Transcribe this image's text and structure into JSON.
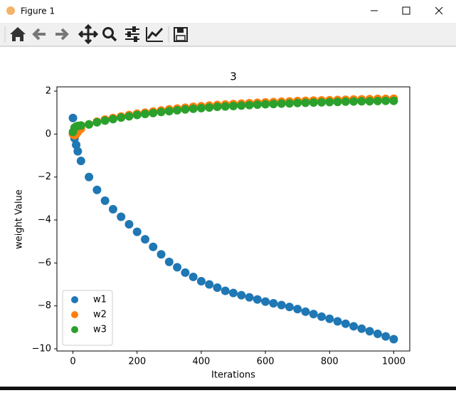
{
  "window": {
    "title": "Figure 1"
  },
  "chart_data": {
    "type": "scatter",
    "title": "3",
    "x_label": "Iterations",
    "y_label": "weight Value",
    "x": [
      0,
      5,
      10,
      15,
      25,
      50,
      75,
      100,
      125,
      150,
      175,
      200,
      225,
      250,
      275,
      300,
      325,
      350,
      375,
      400,
      425,
      450,
      475,
      500,
      525,
      550,
      575,
      600,
      625,
      650,
      675,
      700,
      725,
      750,
      775,
      800,
      825,
      850,
      875,
      900,
      925,
      950,
      975,
      1000
    ],
    "series": [
      {
        "name": "w1",
        "color": "#1f77b4",
        "values": [
          0.75,
          -0.2,
          -0.5,
          -0.8,
          -1.25,
          -2.0,
          -2.6,
          -3.1,
          -3.5,
          -3.85,
          -4.2,
          -4.55,
          -4.9,
          -5.25,
          -5.6,
          -5.95,
          -6.2,
          -6.45,
          -6.65,
          -6.85,
          -7.0,
          -7.15,
          -7.3,
          -7.4,
          -7.5,
          -7.6,
          -7.7,
          -7.8,
          -7.88,
          -7.96,
          -8.05,
          -8.15,
          -8.27,
          -8.38,
          -8.5,
          -8.6,
          -8.72,
          -8.83,
          -8.95,
          -9.06,
          -9.18,
          -9.3,
          -9.42,
          -9.55
        ]
      },
      {
        "name": "w2",
        "color": "#ff7f0e",
        "values": [
          0,
          -0.05,
          0,
          0.1,
          0.25,
          0.45,
          0.58,
          0.68,
          0.75,
          0.82,
          0.89,
          0.95,
          1.0,
          1.05,
          1.1,
          1.15,
          1.19,
          1.23,
          1.27,
          1.3,
          1.33,
          1.36,
          1.38,
          1.4,
          1.42,
          1.44,
          1.46,
          1.48,
          1.49,
          1.51,
          1.52,
          1.54,
          1.55,
          1.56,
          1.57,
          1.58,
          1.59,
          1.6,
          1.61,
          1.62,
          1.63,
          1.64,
          1.64,
          1.65
        ]
      },
      {
        "name": "w3",
        "color": "#2ca02c",
        "values": [
          0.1,
          0.3,
          0.35,
          0.38,
          0.4,
          0.45,
          0.55,
          0.63,
          0.7,
          0.77,
          0.83,
          0.89,
          0.94,
          0.98,
          1.03,
          1.07,
          1.11,
          1.15,
          1.18,
          1.21,
          1.24,
          1.27,
          1.29,
          1.31,
          1.33,
          1.35,
          1.37,
          1.39,
          1.4,
          1.42,
          1.43,
          1.45,
          1.46,
          1.47,
          1.48,
          1.49,
          1.5,
          1.51,
          1.52,
          1.53,
          1.53,
          1.54,
          1.55,
          1.55
        ]
      }
    ],
    "xlim": [
      -50,
      1050
    ],
    "ylim": [
      -10.1,
      2.2
    ],
    "xticks": [
      0,
      200,
      400,
      600,
      800,
      1000
    ],
    "yticks": [
      {
        "value": -10,
        "label": "−10"
      },
      {
        "value": -8,
        "label": "−8"
      },
      {
        "value": -6,
        "label": "−6"
      },
      {
        "value": -4,
        "label": "−4"
      },
      {
        "value": -2,
        "label": "−2"
      },
      0,
      2
    ],
    "legend": "lower left"
  }
}
